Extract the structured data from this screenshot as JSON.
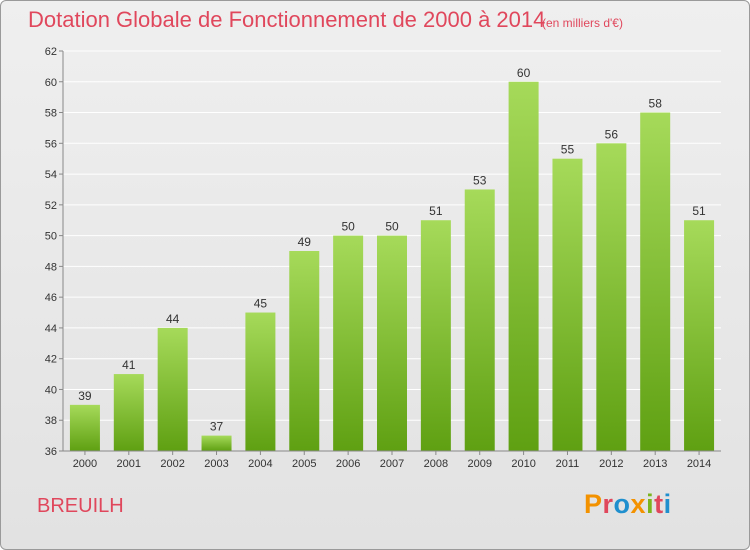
{
  "header": {
    "title": "Dotation Globale de Fonctionnement de 2000 à 2014",
    "unit_note": "(en milliers d'€)"
  },
  "footer": {
    "commune": "BREUILH",
    "logo_text": "Proxiti",
    "logo_colors": [
      "#f39200",
      "#e0475c",
      "#1f8fce",
      "#f39200",
      "#7ab51d",
      "#e0475c",
      "#1f8fce"
    ]
  },
  "colors": {
    "text_accent": "#e0475c",
    "bar_top": "#a6da5a",
    "bar_bottom": "#5fa012",
    "grid": "#ffffff"
  },
  "chart_data": {
    "type": "bar",
    "categories": [
      "2000",
      "2001",
      "2002",
      "2003",
      "2004",
      "2005",
      "2006",
      "2007",
      "2008",
      "2009",
      "2010",
      "2011",
      "2012",
      "2013",
      "2014"
    ],
    "values": [
      39,
      41,
      44,
      37,
      45,
      49,
      50,
      50,
      51,
      53,
      60,
      55,
      56,
      58,
      51
    ],
    "title": "Dotation Globale de Fonctionnement de 2000 à 2014",
    "subtitle": "(en milliers d'€)",
    "xlabel": "",
    "ylabel": "",
    "ylim": [
      36,
      62
    ],
    "yticks": [
      36,
      38,
      40,
      42,
      44,
      46,
      48,
      50,
      52,
      54,
      56,
      58,
      60,
      62
    ],
    "grid": true,
    "data_labels": true
  }
}
